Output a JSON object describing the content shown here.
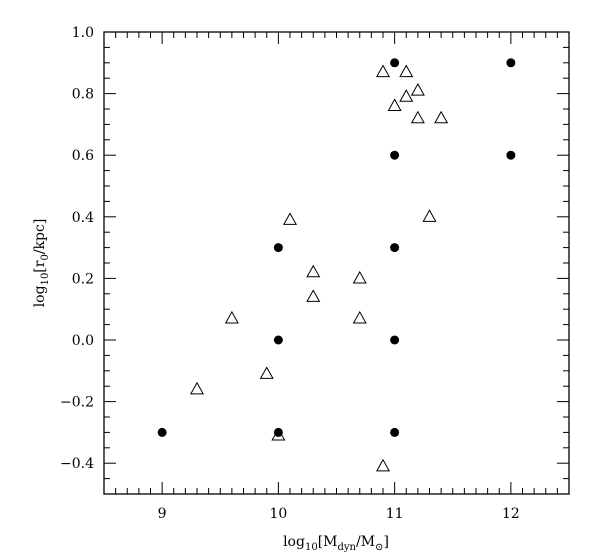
{
  "chart_data": {
    "type": "scatter",
    "title": "",
    "xlabel": "log10[Mdyn/M⊙]",
    "ylabel": "log10[r0/kpc]",
    "xlim": [
      8.5,
      12.5
    ],
    "ylim": [
      -0.5,
      1.0
    ],
    "x_ticks": [
      9,
      10,
      11,
      12
    ],
    "y_ticks": [
      -0.4,
      -0.2,
      0.0,
      0.2,
      0.4,
      0.6,
      0.8,
      1.0
    ],
    "x_tick_labels": [
      "9",
      "10",
      "11",
      "12"
    ],
    "y_tick_labels": [
      "−0.4",
      "−0.2",
      "0.0",
      "0.2",
      "0.4",
      "0.6",
      "0.8",
      "1.0"
    ],
    "grid": false,
    "legend": "none",
    "series": [
      {
        "marker": "filled-circle",
        "color": "#000000",
        "points": [
          {
            "x": 9.0,
            "y": -0.3
          },
          {
            "x": 10.0,
            "y": 0.3
          },
          {
            "x": 10.0,
            "y": 0.0
          },
          {
            "x": 10.0,
            "y": -0.3
          },
          {
            "x": 11.0,
            "y": 0.9
          },
          {
            "x": 11.0,
            "y": 0.6
          },
          {
            "x": 11.0,
            "y": 0.3
          },
          {
            "x": 11.0,
            "y": 0.0
          },
          {
            "x": 11.0,
            "y": -0.3
          },
          {
            "x": 12.0,
            "y": 0.9
          },
          {
            "x": 12.0,
            "y": 0.6
          }
        ]
      },
      {
        "marker": "open-triangle",
        "color": "#000000",
        "points": [
          {
            "x": 9.3,
            "y": -0.16
          },
          {
            "x": 9.6,
            "y": 0.07
          },
          {
            "x": 9.9,
            "y": -0.11
          },
          {
            "x": 10.0,
            "y": -0.31
          },
          {
            "x": 10.1,
            "y": 0.39
          },
          {
            "x": 10.3,
            "y": 0.22
          },
          {
            "x": 10.3,
            "y": 0.14
          },
          {
            "x": 10.7,
            "y": 0.2
          },
          {
            "x": 10.7,
            "y": 0.07
          },
          {
            "x": 10.9,
            "y": -0.41
          },
          {
            "x": 10.9,
            "y": 0.87
          },
          {
            "x": 11.0,
            "y": 0.76
          },
          {
            "x": 11.1,
            "y": 0.87
          },
          {
            "x": 11.1,
            "y": 0.79
          },
          {
            "x": 11.2,
            "y": 0.81
          },
          {
            "x": 11.2,
            "y": 0.72
          },
          {
            "x": 11.3,
            "y": 0.4
          },
          {
            "x": 11.4,
            "y": 0.72
          }
        ]
      }
    ]
  }
}
